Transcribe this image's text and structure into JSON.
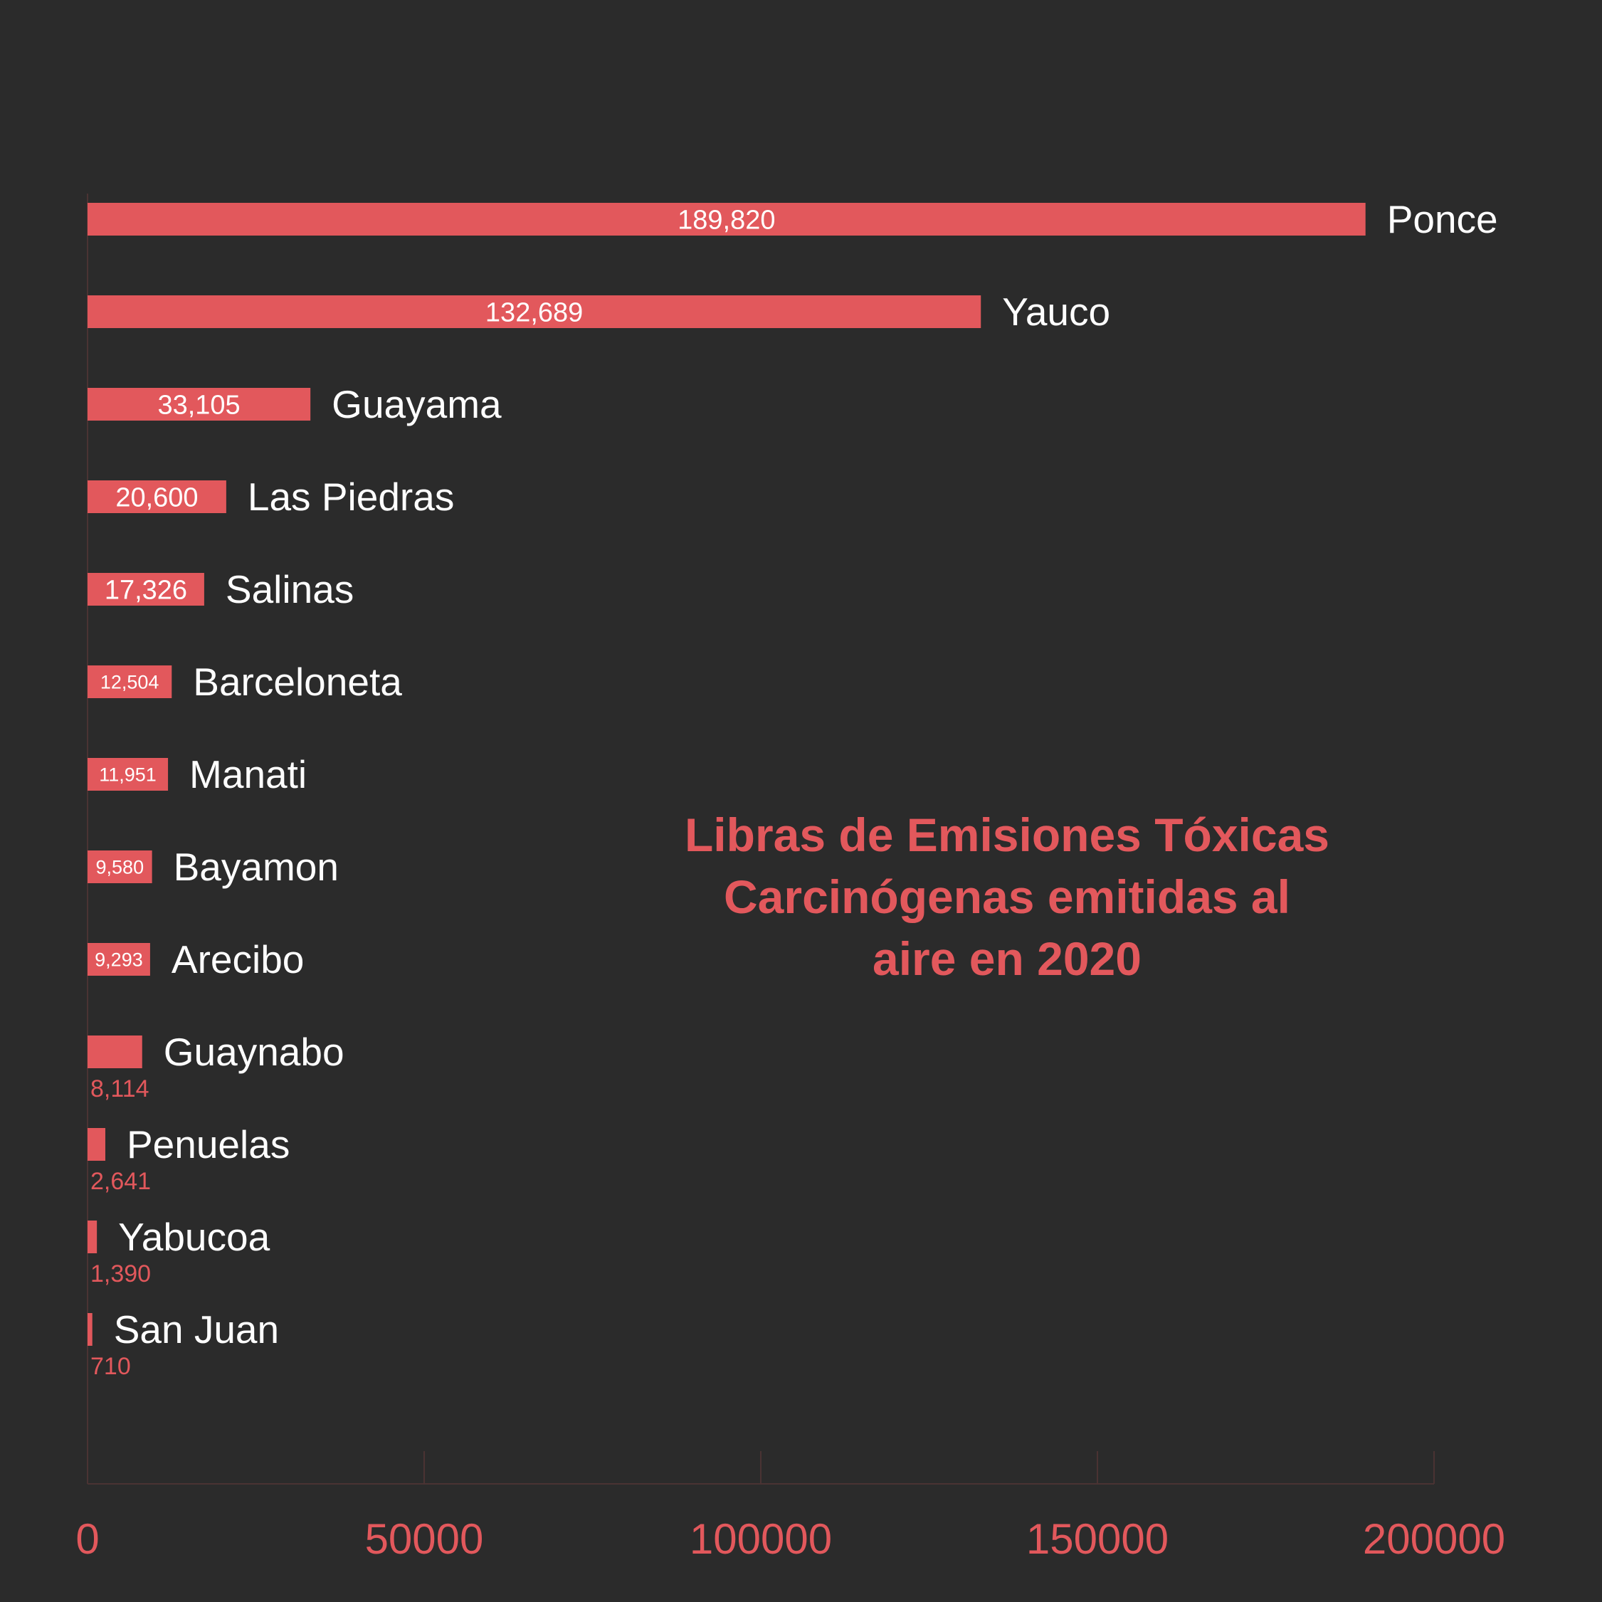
{
  "chart_data": {
    "type": "bar",
    "orientation": "horizontal",
    "title_lines": [
      "Libras de Emisiones Tóxicas",
      "Carcinógenas emitidas  al",
      "aire en 2020"
    ],
    "categories": [
      "Ponce",
      "Yauco",
      "Guayama",
      "Las Piedras",
      "Salinas",
      "Barceloneta",
      "Manati",
      "Bayamon",
      "Arecibo",
      "Guaynabo",
      "Penuelas",
      "Yabucoa",
      "San Juan"
    ],
    "values": [
      189820,
      132689,
      33105,
      20600,
      17326,
      12504,
      11951,
      9580,
      9293,
      8114,
      2641,
      1390,
      710
    ],
    "value_labels": [
      "189,820",
      "132,689",
      "33,105",
      "20,600",
      "17,326",
      "12,504",
      "11,951",
      "9,580",
      "9,293",
      "8,114",
      "2,641",
      "1,390",
      "710"
    ],
    "xlim": [
      0,
      200000
    ],
    "x_ticks": [
      "0",
      "50000",
      "100000",
      "150000",
      "200000"
    ],
    "xlabel": "",
    "ylabel": "",
    "grid": false,
    "legend": "none",
    "colors": {
      "bar": "#e2585c",
      "background": "#2b2b2b",
      "category_label": "#ffffff",
      "value_label_inside": "#ffffff",
      "value_label_outside": "#e2585c",
      "axis": "#4a3333",
      "tick_label": "#e2585c"
    }
  }
}
